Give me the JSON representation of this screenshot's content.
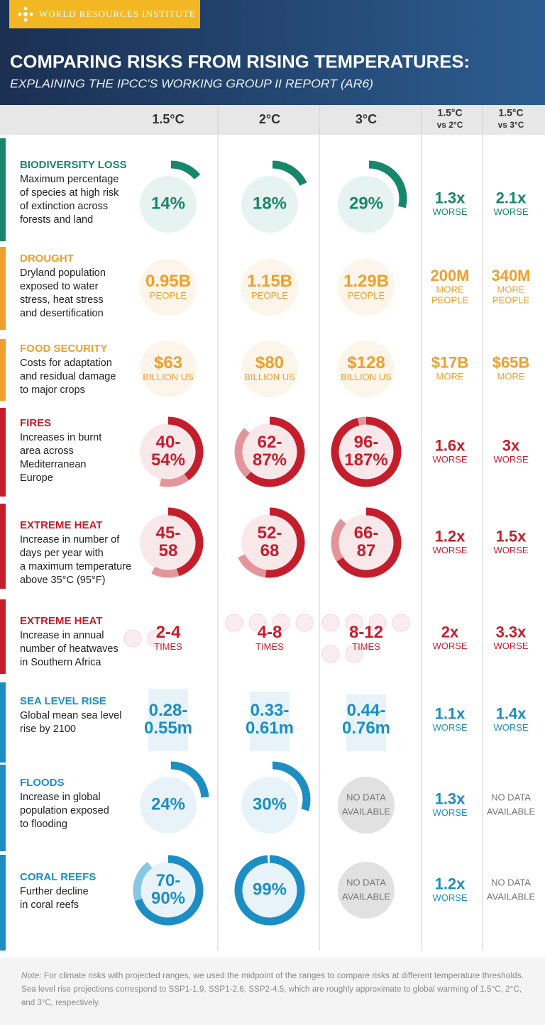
{
  "header": {
    "brand": "WORLD RESOURCES INSTITUTE",
    "title": "COMPARING RISKS FROM RISING TEMPERATURES:",
    "subtitle": "EXPLAINING THE IPCC'S WORKING GROUP II REPORT (AR6)"
  },
  "columns": [
    [
      "1.5°C"
    ],
    [
      "2°C"
    ],
    [
      "3°C"
    ],
    [
      "1.5°C",
      "vs 2°C"
    ],
    [
      "1.5°C",
      "vs 3°C"
    ]
  ],
  "rows": [
    {
      "category": "BIODIVERSITY LOSS",
      "color": "#17876b",
      "light": "#7cc8b0",
      "description": [
        "Maximum percentage",
        "of species at high risk",
        "of extinction across",
        "forests and land"
      ],
      "cells": [
        {
          "lines": [
            "14%"
          ],
          "ring": [
            14
          ]
        },
        {
          "lines": [
            "18%"
          ],
          "ring": [
            18
          ]
        },
        {
          "lines": [
            "29%"
          ],
          "ring": [
            29
          ]
        },
        {
          "lines": [
            "1.3x"
          ],
          "unit": [
            "WORSE"
          ]
        },
        {
          "lines": [
            "2.1x"
          ],
          "unit": [
            "WORSE"
          ]
        }
      ]
    },
    {
      "category": "DROUGHT",
      "color": "#ee9f2d",
      "light": "#f7d29a",
      "description": [
        "Dryland population",
        "exposed to water",
        "stress, heat stress",
        "and desertification"
      ],
      "cells": [
        {
          "lines": [
            "0.95B"
          ],
          "unit": [
            "PEOPLE"
          ]
        },
        {
          "lines": [
            "1.15B"
          ],
          "unit": [
            "PEOPLE"
          ]
        },
        {
          "lines": [
            "1.29B"
          ],
          "unit": [
            "PEOPLE"
          ]
        },
        {
          "lines": [
            "200M"
          ],
          "unit": [
            "MORE",
            "PEOPLE"
          ]
        },
        {
          "lines": [
            "340M"
          ],
          "unit": [
            "MORE",
            "PEOPLE"
          ]
        }
      ]
    },
    {
      "category": "FOOD SECURITY",
      "color": "#ee9f2d",
      "light": "#f7d29a",
      "description": [
        "Costs for adaptation",
        "and residual damage",
        "to major crops"
      ],
      "cells": [
        {
          "lines": [
            "$63"
          ],
          "unit": [
            "BILLION US"
          ]
        },
        {
          "lines": [
            "$80"
          ],
          "unit": [
            "BILLION US"
          ]
        },
        {
          "lines": [
            "$128"
          ],
          "unit": [
            "BILLION US"
          ]
        },
        {
          "lines": [
            "$17B"
          ],
          "unit": [
            "MORE"
          ]
        },
        {
          "lines": [
            "$65B"
          ],
          "unit": [
            "MORE"
          ]
        }
      ]
    },
    {
      "category": "FIRES",
      "color": "#c41e2d",
      "light": "#e4949b",
      "description": [
        "Increases in burnt",
        "area across",
        "Mediterranean",
        "Europe"
      ],
      "cells": [
        {
          "lines": [
            "40-",
            "54%"
          ],
          "ring": [
            40,
            54
          ]
        },
        {
          "lines": [
            "62-",
            "87%"
          ],
          "ring": [
            62,
            87
          ]
        },
        {
          "lines": [
            "96-",
            "187%"
          ],
          "ring": [
            96,
            100
          ]
        },
        {
          "lines": [
            "1.6x"
          ],
          "unit": [
            "WORSE"
          ]
        },
        {
          "lines": [
            "3x"
          ],
          "unit": [
            "WORSE"
          ]
        }
      ]
    },
    {
      "category": "EXTREME HEAT",
      "color": "#c41e2d",
      "light": "#e4949b",
      "description": [
        "Increase in number of",
        "days per year with",
        "a maximum temperature",
        "above 35°C (95°F)"
      ],
      "cells": [
        {
          "lines": [
            "45-",
            "58"
          ],
          "ring": [
            45,
            58
          ]
        },
        {
          "lines": [
            "52-",
            "68"
          ],
          "ring": [
            52,
            68
          ]
        },
        {
          "lines": [
            "66-",
            "87"
          ],
          "ring": [
            66,
            87
          ]
        },
        {
          "lines": [
            "1.2x"
          ],
          "unit": [
            "WORSE"
          ]
        },
        {
          "lines": [
            "1.5x"
          ],
          "unit": [
            "WORSE"
          ]
        }
      ]
    },
    {
      "category": "EXTREME HEAT",
      "color": "#c41e2d",
      "light": "#e4949b",
      "description": [
        "Increase in annual",
        "number of heatwaves",
        "in Southern Africa"
      ],
      "cells": [
        {
          "lines": [
            "2-4"
          ],
          "unit": [
            "TIMES"
          ]
        },
        {
          "lines": [
            "4-8"
          ],
          "unit": [
            "TIMES"
          ]
        },
        {
          "lines": [
            "8-12"
          ],
          "unit": [
            "TIMES"
          ]
        },
        {
          "lines": [
            "2x"
          ],
          "unit": [
            "WORSE"
          ]
        },
        {
          "lines": [
            "3.3x"
          ],
          "unit": [
            "WORSE"
          ]
        }
      ]
    },
    {
      "category": "SEA LEVEL RISE",
      "color": "#1c8ec4",
      "light": "#86c7e5",
      "description": [
        "Global mean sea level",
        "rise by 2100"
      ],
      "cells": [
        {
          "lines": [
            "0.28-",
            "0.55m"
          ]
        },
        {
          "lines": [
            "0.33-",
            "0.61m"
          ]
        },
        {
          "lines": [
            "0.44-",
            "0.76m"
          ]
        },
        {
          "lines": [
            "1.1x"
          ],
          "unit": [
            "WORSE"
          ]
        },
        {
          "lines": [
            "1.4x"
          ],
          "unit": [
            "WORSE"
          ]
        }
      ]
    },
    {
      "category": "FLOODS",
      "color": "#1c8ec4",
      "light": "#86c7e5",
      "description": [
        "Increase in global",
        "population exposed",
        "to flooding"
      ],
      "cells": [
        {
          "lines": [
            "24%"
          ],
          "ring": [
            24
          ]
        },
        {
          "lines": [
            "30%"
          ],
          "ring": [
            30
          ]
        },
        {
          "note": [
            "NO DATA",
            "AVAILABLE"
          ]
        },
        {
          "lines": [
            "1.3x"
          ],
          "unit": [
            "WORSE"
          ]
        },
        {
          "note": [
            "NO DATA",
            "AVAILABLE"
          ]
        }
      ]
    },
    {
      "category": "CORAL REEFS",
      "color": "#1c8ec4",
      "light": "#86c7e5",
      "description": [
        "Further decline",
        "in coral reefs"
      ],
      "cells": [
        {
          "lines": [
            "70-",
            "90%"
          ],
          "ring": [
            70,
            90
          ]
        },
        {
          "lines": [
            "99%"
          ],
          "ring": [
            99
          ]
        },
        {
          "note": [
            "NO DATA",
            "AVAILABLE"
          ]
        },
        {
          "lines": [
            "1.2x"
          ],
          "unit": [
            "WORSE"
          ]
        },
        {
          "note": [
            "NO DATA",
            "AVAILABLE"
          ]
        }
      ]
    }
  ],
  "note": {
    "label": "Note:",
    "lines": [
      "For climate risks with projected ranges, we used the midpoint of the ranges to compare risks at different temperature thresholds.",
      "Sea level rise projections correspond to SSP1-1.9, SSP1-2.6, SSP2-4.5, which are roughly approximate to global warming of 1.5°C, 2°C,",
      "and 3°C, respectively."
    ]
  }
}
